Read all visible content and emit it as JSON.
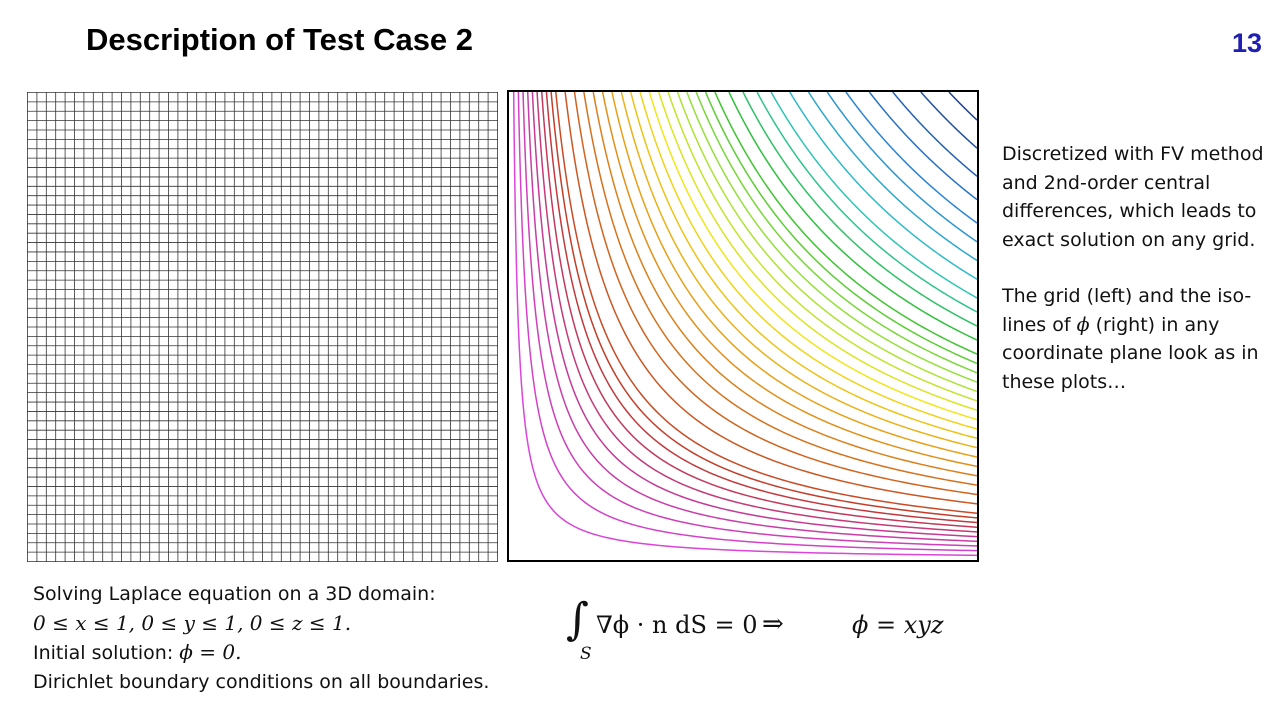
{
  "slide": {
    "title": "Description of Test Case 2",
    "page_number": "13"
  },
  "notes": {
    "paragraph1": "Discretized with FV method and 2nd-order central differences, which leads to exact solution on any grid.",
    "paragraph2_pre": "The grid (left) and the iso-lines of ",
    "paragraph2_phi": "ϕ",
    "paragraph2_post": " (right) in any coordinate plane look as in these plots…"
  },
  "bottom": {
    "line1": "Solving Laplace equation on a 3D domain:",
    "line2": "0 ≤ x ≤ 1, 0 ≤ y ≤ 1, 0 ≤ z ≤ 1.",
    "line3_label": "Initial solution: ",
    "line3_math": "ϕ = 0.",
    "line4": "Dirichlet boundary conditions on all boundaries."
  },
  "equation": {
    "integral_sign": "∫",
    "integral_subscript": "S",
    "body": "∇ϕ · n dS = 0",
    "implies": "⇒",
    "result": "ϕ = xyz"
  },
  "grid": {
    "cells": 50,
    "line_color": "#333333"
  },
  "contours": {
    "levels": [
      0.01,
      0.02,
      0.03,
      0.04,
      0.05,
      0.06,
      0.07,
      0.08,
      0.09,
      0.1,
      0.12,
      0.14,
      0.16,
      0.18,
      0.2,
      0.22,
      0.24,
      0.26,
      0.28,
      0.3,
      0.32,
      0.34,
      0.36,
      0.38,
      0.4,
      0.42,
      0.44,
      0.47,
      0.5,
      0.53,
      0.56,
      0.6,
      0.64,
      0.68,
      0.72,
      0.77,
      0.82,
      0.88,
      0.94
    ],
    "colors": [
      "#d946d9",
      "#c43a9a",
      "#c0392b",
      "#d2691e",
      "#e8a317",
      "#f2e61a",
      "#9be23c",
      "#2ec02e",
      "#2fc6c6",
      "#2a7fd6",
      "#1e3f8f"
    ]
  }
}
